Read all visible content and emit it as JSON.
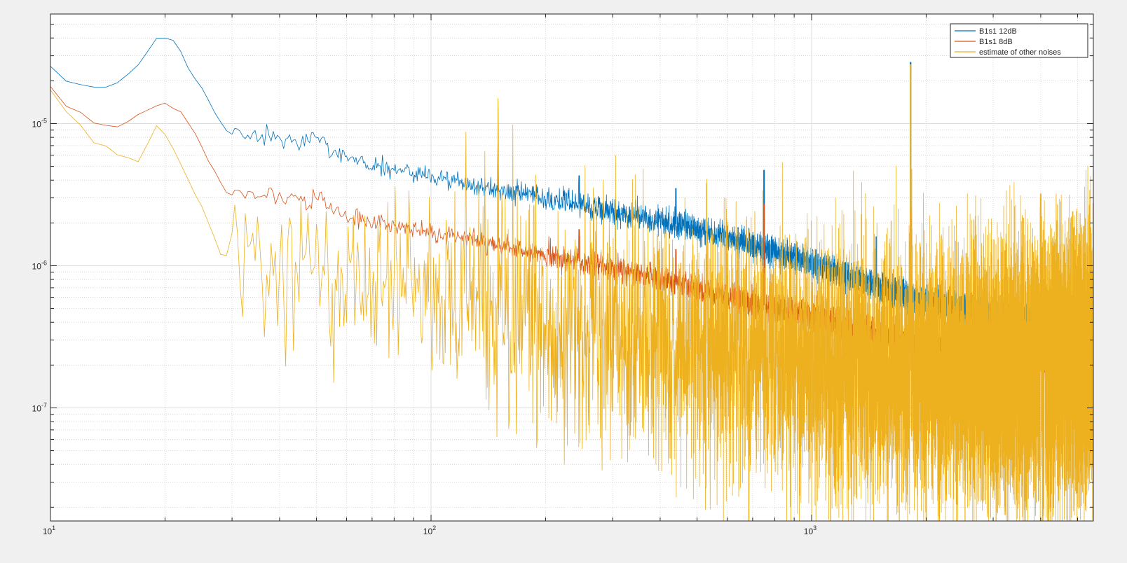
{
  "chart_data": {
    "type": "line",
    "x_scale": "log",
    "y_scale": "log",
    "xlim": [
      10,
      5500
    ],
    "ylim": [
      1.6e-08,
      5.9e-05
    ],
    "grid": true,
    "minor_grid": true,
    "legend_position": "top-right",
    "x_ticks": [
      {
        "value": 10,
        "base": "10",
        "exp": "1"
      },
      {
        "value": 100,
        "base": "10",
        "exp": "2"
      },
      {
        "value": 1000,
        "base": "10",
        "exp": "3"
      }
    ],
    "y_ticks": [
      {
        "value": 1e-07,
        "base": "10",
        "exp": "-7"
      },
      {
        "value": 1e-06,
        "base": "10",
        "exp": "-6"
      },
      {
        "value": 1e-05,
        "base": "10",
        "exp": "-5"
      }
    ],
    "series": [
      {
        "name": "B1s1 12dB",
        "color": "#0072BD",
        "anchors": [
          [
            10,
            2.5e-05
          ],
          [
            11,
            2e-05
          ],
          [
            12,
            1.9e-05
          ],
          [
            13,
            1.8e-05
          ],
          [
            14,
            1.8e-05
          ],
          [
            15,
            1.95e-05
          ],
          [
            16,
            2.2e-05
          ],
          [
            17,
            2.6e-05
          ],
          [
            18,
            3.3e-05
          ],
          [
            19,
            3.9e-05
          ],
          [
            20,
            4e-05
          ],
          [
            21,
            3.8e-05
          ],
          [
            22,
            3.2e-05
          ],
          [
            23,
            2.4e-05
          ],
          [
            25,
            1.8e-05
          ],
          [
            27,
            1.2e-05
          ],
          [
            29,
            9e-06
          ],
          [
            32,
            8.5e-06
          ],
          [
            35,
            8e-06
          ],
          [
            40,
            7.8e-06
          ],
          [
            45,
            7e-06
          ],
          [
            50,
            8.5e-06
          ],
          [
            55,
            6.5e-06
          ],
          [
            60,
            6e-06
          ],
          [
            70,
            5e-06
          ],
          [
            80,
            4.8e-06
          ],
          [
            100,
            4.3e-06
          ],
          [
            120,
            3.8e-06
          ],
          [
            150,
            3.4e-06
          ],
          [
            200,
            3e-06
          ],
          [
            250,
            2.7e-06
          ],
          [
            300,
            2.4e-06
          ],
          [
            400,
            2.1e-06
          ],
          [
            500,
            1.8e-06
          ],
          [
            700,
            1.4e-06
          ],
          [
            1000,
            1.05e-06
          ],
          [
            1500,
            7e-07
          ],
          [
            2000,
            5.6e-07
          ],
          [
            3000,
            4.4e-07
          ],
          [
            4000,
            3.8e-07
          ],
          [
            5500,
            3.5e-07
          ]
        ],
        "spikes": [
          [
            150,
            1e-05
          ],
          [
            245,
            4.3e-06
          ],
          [
            440,
            3.5e-06
          ],
          [
            750,
            4.7e-06
          ],
          [
            1480,
            1.6e-06
          ],
          [
            1820,
            2.7e-05
          ],
          [
            3830,
            9e-07
          ]
        ]
      },
      {
        "name": "B1s1 8dB",
        "color": "#D95319",
        "anchors": [
          [
            10,
            1.85e-05
          ],
          [
            11,
            1.35e-05
          ],
          [
            12,
            1.2e-05
          ],
          [
            13,
            1e-05
          ],
          [
            15,
            9.5e-06
          ],
          [
            17,
            1.15e-05
          ],
          [
            20,
            1.4e-05
          ],
          [
            22,
            1.2e-05
          ],
          [
            24,
            8.5e-06
          ],
          [
            26,
            5.5e-06
          ],
          [
            29,
            3.3e-06
          ],
          [
            32,
            3.3e-06
          ],
          [
            38,
            3e-06
          ],
          [
            42,
            3e-06
          ],
          [
            48,
            2.8e-06
          ],
          [
            50,
            3.3e-06
          ],
          [
            55,
            2.5e-06
          ],
          [
            60,
            2.2e-06
          ],
          [
            70,
            2.05e-06
          ],
          [
            80,
            1.9e-06
          ],
          [
            100,
            1.7e-06
          ],
          [
            120,
            1.6e-06
          ],
          [
            150,
            1.4e-06
          ],
          [
            200,
            1.2e-06
          ],
          [
            250,
            1.06e-06
          ],
          [
            300,
            9.5e-07
          ],
          [
            400,
            8.2e-07
          ],
          [
            500,
            7e-07
          ],
          [
            700,
            5.5e-07
          ],
          [
            1000,
            4.4e-07
          ],
          [
            1500,
            3.2e-07
          ],
          [
            2000,
            2.6e-07
          ],
          [
            3000,
            2.35e-07
          ],
          [
            4000,
            2.2e-07
          ],
          [
            5500,
            2e-07
          ]
        ],
        "spikes": [
          [
            150,
            1.3e-05
          ],
          [
            245,
            1.8e-06
          ],
          [
            440,
            1.3e-06
          ],
          [
            750,
            2.7e-06
          ],
          [
            1820,
            2.5e-06
          ],
          [
            3830,
            6e-07
          ],
          [
            4000,
            3e-06
          ]
        ]
      },
      {
        "name": "estimate of other noises",
        "color": "#EDB120",
        "anchors": [
          [
            10,
            1.7e-05
          ],
          [
            11,
            1.2e-05
          ],
          [
            12,
            1e-05
          ],
          [
            13,
            7.5e-06
          ],
          [
            14,
            6.8e-06
          ],
          [
            15,
            6e-06
          ],
          [
            17,
            5.5e-06
          ],
          [
            19,
            9.8e-06
          ],
          [
            20,
            8.6e-06
          ],
          [
            22,
            5.5e-06
          ],
          [
            24,
            3.2e-06
          ],
          [
            26,
            2e-06
          ],
          [
            28,
            1.2e-06
          ],
          [
            30,
            1.1e-06
          ],
          [
            35,
            1e-06
          ],
          [
            40,
            8e-07
          ],
          [
            50,
            8e-07
          ],
          [
            60,
            7.5e-07
          ],
          [
            80,
            7e-07
          ],
          [
            100,
            6.2e-07
          ],
          [
            150,
            5e-07
          ],
          [
            200,
            4e-07
          ],
          [
            300,
            3.5e-07
          ],
          [
            500,
            2.8e-07
          ],
          [
            1000,
            2e-07
          ],
          [
            2000,
            1.8e-07
          ],
          [
            3000,
            1.7e-07
          ],
          [
            4000,
            1.8e-07
          ],
          [
            5500,
            2.3e-07
          ]
        ],
        "spikes": [
          [
            150,
            1.5e-05
          ],
          [
            1820,
            2.6e-05
          ],
          [
            4000,
            3.2e-06
          ],
          [
            4100,
            1.5e-06
          ]
        ]
      }
    ]
  }
}
